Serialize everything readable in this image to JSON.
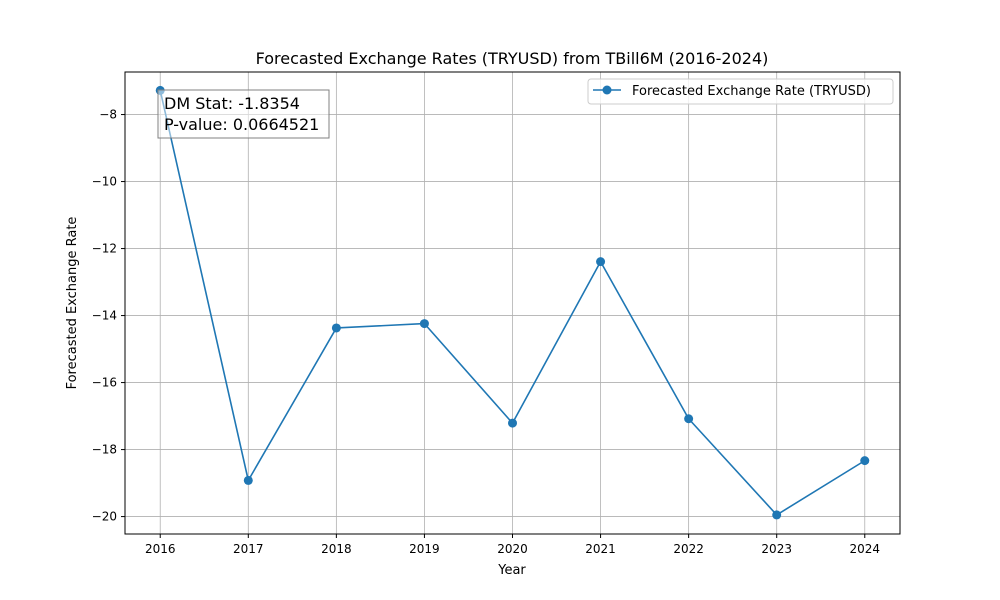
{
  "chart_data": {
    "type": "line",
    "title": "Forecasted Exchange Rates (TRYUSD) from TBill6M (2016-2024)",
    "xlabel": "Year",
    "ylabel": "Forecasted Exchange Rate",
    "x": [
      2016,
      2017,
      2018,
      2019,
      2020,
      2021,
      2022,
      2023,
      2024
    ],
    "series": [
      {
        "name": "Forecasted Exchange Rate (TRYUSD)",
        "color": "#1f77b4",
        "values": [
          -7.28,
          -18.92,
          -14.37,
          -14.24,
          -17.21,
          -12.39,
          -17.08,
          -19.95,
          -18.33
        ]
      }
    ],
    "xlim": [
      2015.6,
      2024.4
    ],
    "ylim": [
      -20.52,
      -6.73
    ],
    "x_ticks": [
      2016,
      2017,
      2018,
      2019,
      2020,
      2021,
      2022,
      2023,
      2024
    ],
    "y_ticks": [
      -8,
      -10,
      -12,
      -14,
      -16,
      -18,
      -20
    ],
    "grid": true,
    "legend_position": "top-right",
    "annotation": {
      "line1": "DM Stat: -1.8354",
      "line2": "P-value: 0.0664521"
    }
  }
}
